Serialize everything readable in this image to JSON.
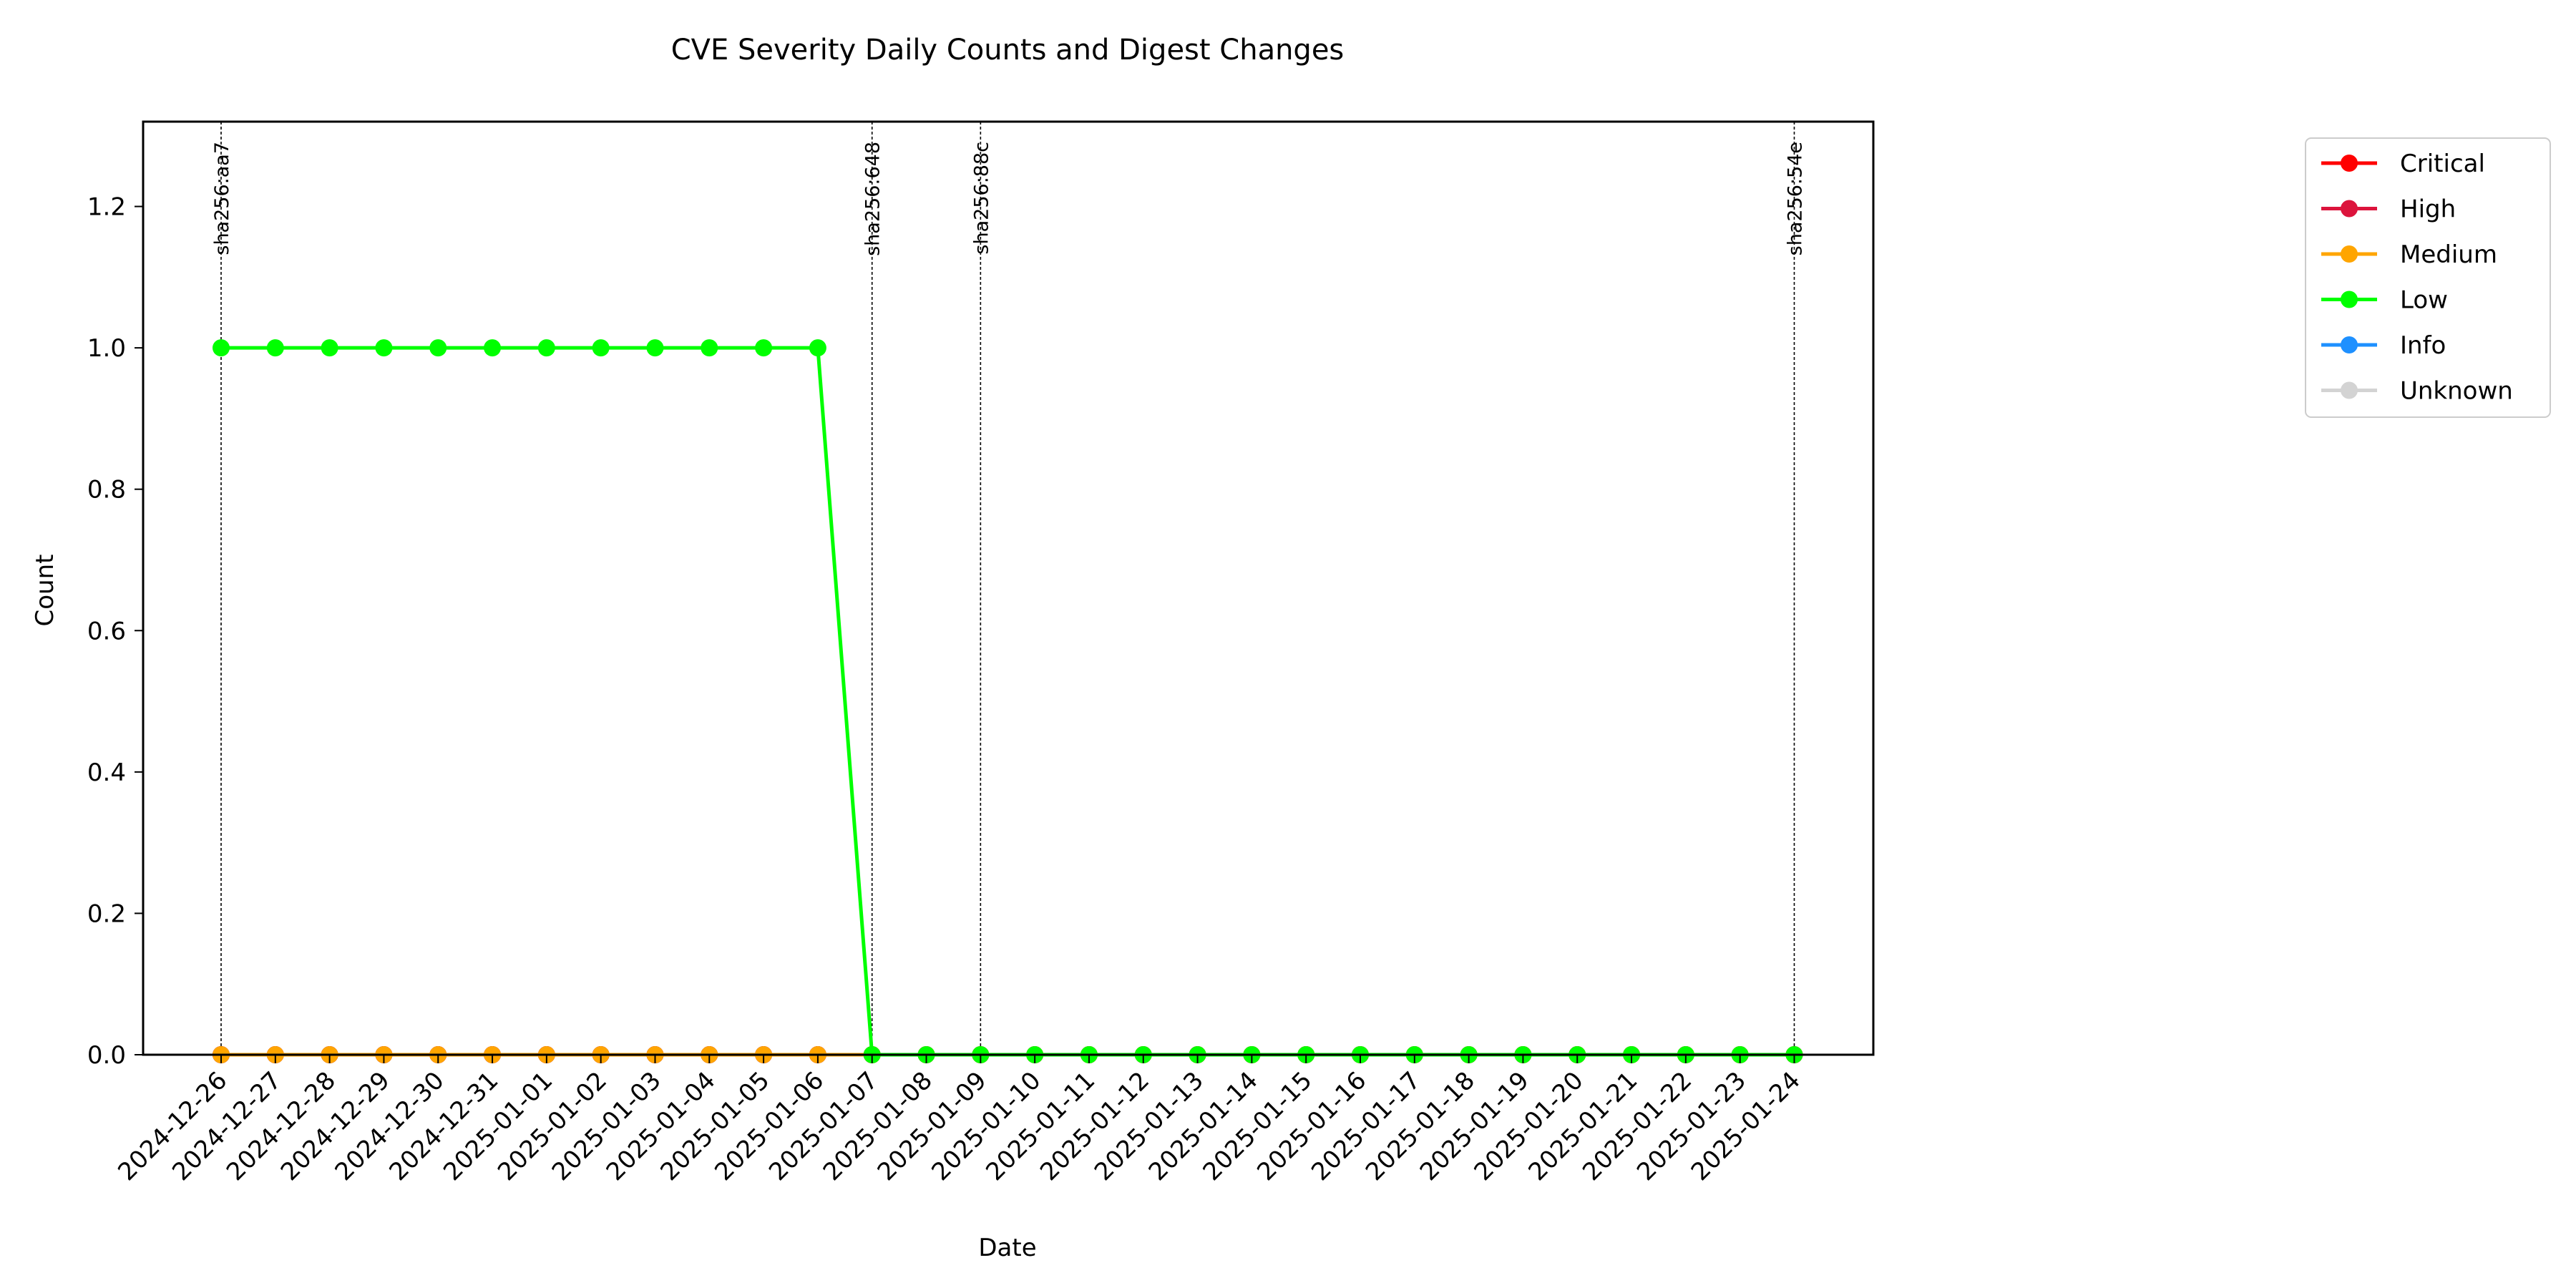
{
  "chart_data": {
    "type": "line",
    "title": "CVE Severity Daily Counts and Digest Changes",
    "xlabel": "Date",
    "ylabel": "Count",
    "ylim": [
      0,
      1.32
    ],
    "yticks": [
      "0.0",
      "0.2",
      "0.4",
      "0.6",
      "0.8",
      "1.0",
      "1.2"
    ],
    "grid": false,
    "legend_position": "outside-top-right",
    "x": [
      "2024-12-26",
      "2024-12-27",
      "2024-12-28",
      "2024-12-29",
      "2024-12-30",
      "2024-12-31",
      "2025-01-01",
      "2025-01-02",
      "2025-01-03",
      "2025-01-04",
      "2025-01-05",
      "2025-01-06",
      "2025-01-07",
      "2025-01-08",
      "2025-01-09",
      "2025-01-10",
      "2025-01-11",
      "2025-01-12",
      "2025-01-13",
      "2025-01-14",
      "2025-01-15",
      "2025-01-16",
      "2025-01-17",
      "2025-01-18",
      "2025-01-19",
      "2025-01-20",
      "2025-01-21",
      "2025-01-22",
      "2025-01-23",
      "2025-01-24"
    ],
    "series": [
      {
        "name": "Critical",
        "color": "#ff0000",
        "values": [
          0,
          0,
          0,
          0,
          0,
          0,
          0,
          0,
          0,
          0,
          0,
          0,
          0,
          0,
          0,
          0,
          0,
          0,
          0,
          0,
          0,
          0,
          0,
          0,
          0,
          0,
          0,
          0,
          0,
          0
        ]
      },
      {
        "name": "High",
        "color": "#dc143c",
        "values": [
          0,
          0,
          0,
          0,
          0,
          0,
          0,
          0,
          0,
          0,
          0,
          0,
          0,
          0,
          0,
          0,
          0,
          0,
          0,
          0,
          0,
          0,
          0,
          0,
          0,
          0,
          0,
          0,
          0,
          0
        ]
      },
      {
        "name": "Medium",
        "color": "#ffa500",
        "values": [
          0,
          0,
          0,
          0,
          0,
          0,
          0,
          0,
          0,
          0,
          0,
          0,
          0,
          0,
          0,
          0,
          0,
          0,
          0,
          0,
          0,
          0,
          0,
          0,
          0,
          0,
          0,
          0,
          0,
          0
        ]
      },
      {
        "name": "Low",
        "color": "#00ff00",
        "values": [
          1,
          1,
          1,
          1,
          1,
          1,
          1,
          1,
          1,
          1,
          1,
          1,
          0,
          0,
          0,
          0,
          0,
          0,
          0,
          0,
          0,
          0,
          0,
          0,
          0,
          0,
          0,
          0,
          0,
          0
        ]
      },
      {
        "name": "Info",
        "color": "#1e90ff",
        "values": [
          0,
          0,
          0,
          0,
          0,
          0,
          0,
          0,
          0,
          0,
          0,
          0,
          0,
          0,
          0,
          0,
          0,
          0,
          0,
          0,
          0,
          0,
          0,
          0,
          0,
          0,
          0,
          0,
          0,
          0
        ]
      },
      {
        "name": "Unknown",
        "color": "#d3d3d3",
        "values": [
          0,
          0,
          0,
          0,
          0,
          0,
          0,
          0,
          0,
          0,
          0,
          0,
          0,
          0,
          0,
          0,
          0,
          0,
          0,
          0,
          0,
          0,
          0,
          0,
          0,
          0,
          0,
          0,
          0,
          0
        ]
      }
    ],
    "annotations": [
      {
        "x": "2024-12-26",
        "label": "sha256:aa7"
      },
      {
        "x": "2025-01-07",
        "label": "sha256:648"
      },
      {
        "x": "2025-01-09",
        "label": "sha256:88c"
      },
      {
        "x": "2025-01-24",
        "label": "sha256:54e"
      }
    ]
  }
}
